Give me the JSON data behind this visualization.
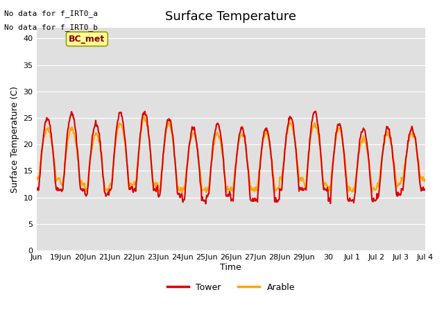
{
  "title": "Surface Temperature",
  "ylabel": "Surface Temperature (C)",
  "xlabel": "Time",
  "annotation_lines": [
    "No data for f_IRT0_a",
    "No data for f_IRT0_b"
  ],
  "legend_label_text": "BC_met",
  "legend_entries": [
    "Tower",
    "Arable"
  ],
  "background_color": "#e0e0e0",
  "ylim": [
    0,
    42
  ],
  "yticks": [
    0,
    5,
    10,
    15,
    20,
    25,
    30,
    35,
    40
  ],
  "x_tick_labels": [
    "Jun",
    "19Jun",
    "20Jun",
    "21Jun",
    "22Jun",
    "23Jun",
    "24Jun",
    "25Jun",
    "26Jun",
    "27Jun",
    "28Jun",
    "29Jun",
    "30",
    "Jul 1",
    "Jul 2",
    "Jul 3",
    "Jul 4"
  ],
  "tower_color": "#dd0000",
  "arable_color": "#ffa500",
  "tower_lw": 1.5,
  "arable_lw": 1.5
}
